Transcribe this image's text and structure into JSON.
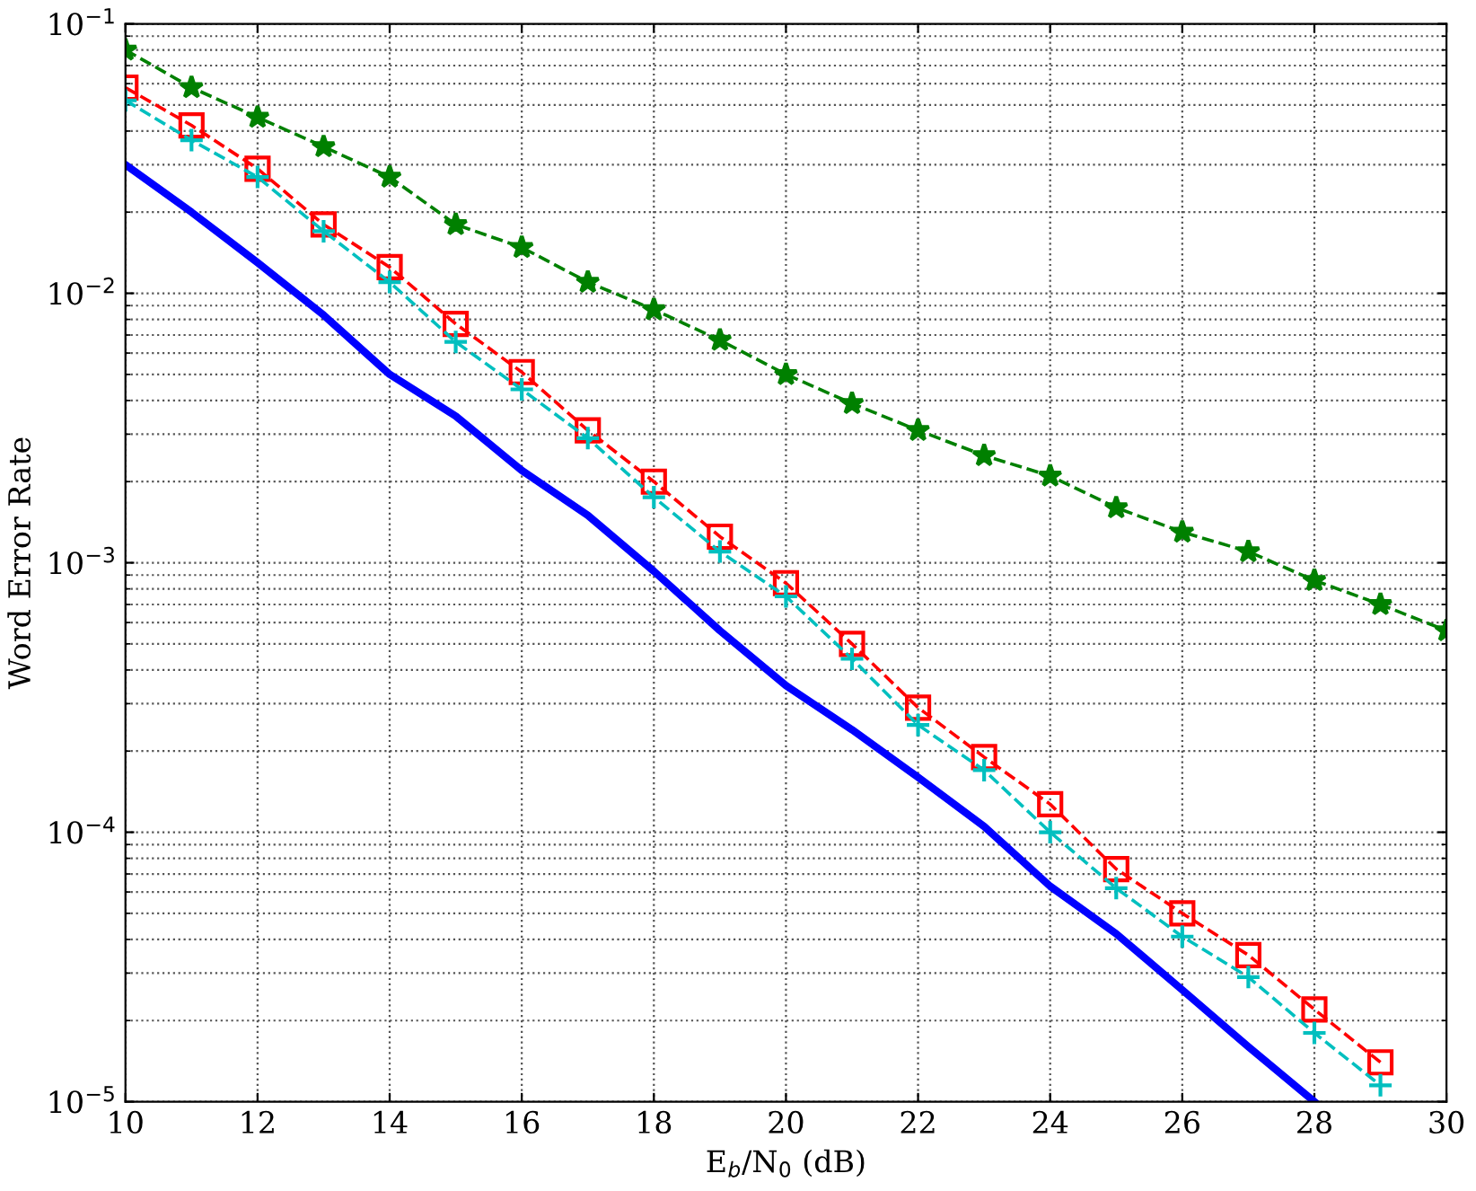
{
  "chart_data": {
    "type": "line",
    "xlabel": "E$_{b}$/N$_{0}$ (dB)",
    "ylabel": "Word Error Rate",
    "log": "y",
    "grid": true,
    "xlim": [
      10,
      30
    ],
    "xticks": [
      10,
      12,
      14,
      16,
      18,
      20,
      22,
      24,
      26,
      28,
      30
    ],
    "ylim": [
      1e-05,
      0.1
    ],
    "yticks": [
      {
        "value": 1e-05,
        "label": "10$^{−5}$"
      },
      {
        "value": 0.0001,
        "label": "10$^{−4}$"
      },
      {
        "value": 0.001,
        "label": "10$^{−3}$"
      },
      {
        "value": 0.01,
        "label": "10$^{−2}$"
      },
      {
        "value": 0.1,
        "label": "10$^{−1}$"
      }
    ],
    "series": [
      {
        "color": "#008000",
        "marker": "star",
        "line_style": "dashed",
        "x": [
          10,
          11,
          12,
          13,
          14,
          15,
          16,
          17,
          18,
          19,
          20,
          21,
          22,
          23,
          24,
          25,
          26,
          27,
          28,
          29,
          30
        ],
        "values": [
          0.08,
          0.058,
          0.045,
          0.035,
          0.027,
          0.018,
          0.0148,
          0.011,
          0.0087,
          0.0067,
          0.005,
          0.0039,
          0.0031,
          0.0025,
          0.0021,
          0.0016,
          0.0013,
          0.0011,
          0.00086,
          0.0007,
          0.00056
        ]
      },
      {
        "color": "#ff0000",
        "marker": "square",
        "line_style": "dashed",
        "x": [
          10,
          11,
          12,
          13,
          14,
          15,
          16,
          17,
          18,
          19,
          20,
          21,
          22,
          23,
          24,
          25,
          26,
          27,
          28,
          29
        ],
        "values": [
          0.058,
          0.042,
          0.029,
          0.018,
          0.0125,
          0.0077,
          0.0051,
          0.0031,
          0.002,
          0.00125,
          0.00084,
          0.0005,
          0.00029,
          0.00019,
          0.000127,
          7.3e-05,
          5e-05,
          3.5e-05,
          2.2e-05,
          1.4e-05
        ]
      },
      {
        "color": "#00bfbf",
        "marker": "cross",
        "line_style": "dashed",
        "x": [
          10,
          11,
          12,
          13,
          14,
          15,
          16,
          17,
          18,
          19,
          20,
          21,
          22,
          23,
          24,
          25,
          26,
          27,
          28,
          29
        ],
        "values": [
          0.052,
          0.037,
          0.027,
          0.017,
          0.011,
          0.0066,
          0.0044,
          0.0029,
          0.00175,
          0.0011,
          0.00075,
          0.00044,
          0.00025,
          0.00017,
          0.0001,
          6.2e-05,
          4.1e-05,
          2.9e-05,
          1.8e-05,
          1.15e-05
        ]
      },
      {
        "color": "#0000ff",
        "marker": "none",
        "line_style": "solid",
        "x": [
          10,
          11,
          12,
          13,
          14,
          15,
          16,
          17,
          18,
          19,
          20,
          21,
          22,
          23,
          24,
          25,
          26,
          27,
          28
        ],
        "values": [
          0.03,
          0.02,
          0.013,
          0.0083,
          0.005,
          0.0035,
          0.0022,
          0.0015,
          0.00093,
          0.00056,
          0.00035,
          0.00024,
          0.00016,
          0.000105,
          6.3e-05,
          4.2e-05,
          2.6e-05,
          1.6e-05,
          1e-05
        ]
      }
    ]
  }
}
